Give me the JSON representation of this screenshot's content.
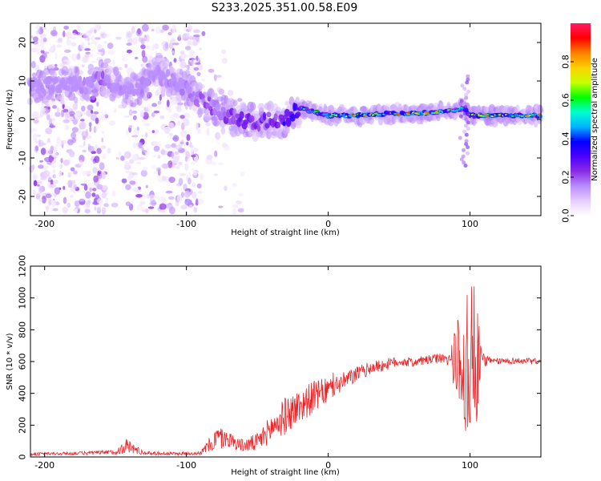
{
  "title": "S233.2025.351.00.58.E09",
  "colors": {
    "snr_line": "#e8262a",
    "axis": "#000000",
    "colormap": [
      "#ffffff",
      "#e6ccff",
      "#b88cff",
      "#8a2be2",
      "#4b00ff",
      "#0000ff",
      "#00b4ff",
      "#00ffd0",
      "#00ff00",
      "#c8ff00",
      "#ffd000",
      "#ff8000",
      "#ff0000",
      "#ff1a66"
    ]
  },
  "chart_data": [
    {
      "type": "heatmap",
      "title": "",
      "xlabel": "Height of straight line (km)",
      "ylabel": "Frequency (Hz)",
      "xlim": [
        -210,
        150
      ],
      "ylim": [
        -25,
        25
      ],
      "x_ticks": [
        -200,
        -100,
        0,
        100
      ],
      "y_ticks": [
        -20,
        -10,
        0,
        10,
        20
      ],
      "colorbar": {
        "label": "Normalized spectral amplitude",
        "range": [
          0,
          1
        ],
        "ticks": [
          "0.0",
          "0.2",
          "0.4",
          "0.6",
          "0.8"
        ],
        "tick_values": [
          0,
          0.2,
          0.4,
          0.6,
          0.8
        ]
      },
      "ridge": {
        "x": [
          -210,
          -190,
          -170,
          -160,
          -150,
          -140,
          -120,
          -100,
          -90,
          -80,
          -70,
          -60,
          -50,
          -40,
          -30,
          -20,
          -10,
          0,
          20,
          40,
          60,
          80,
          90,
          95,
          100,
          110,
          130,
          150
        ],
        "freq": [
          8,
          9,
          9,
          11,
          9,
          7,
          12,
          8,
          5,
          3,
          1,
          0,
          -1,
          0,
          0,
          3,
          2,
          1,
          1,
          1.5,
          1.5,
          2,
          2.5,
          3,
          1,
          1,
          1,
          1
        ],
        "amplitude": [
          0.25,
          0.25,
          0.3,
          0.35,
          0.3,
          0.25,
          0.3,
          0.3,
          0.35,
          0.4,
          0.45,
          0.5,
          0.45,
          0.5,
          0.6,
          0.6,
          0.65,
          0.7,
          0.8,
          0.75,
          0.85,
          0.8,
          0.45,
          0.5,
          0.75,
          0.8,
          0.75,
          0.85
        ]
      }
    },
    {
      "type": "line",
      "title": "",
      "xlabel": "Height of straight line (km)",
      "ylabel": "SNR (10 * v/v)",
      "xlim": [
        -210,
        150
      ],
      "ylim": [
        0,
        1200
      ],
      "x_ticks": [
        -200,
        -100,
        0,
        100
      ],
      "y_ticks": [
        0,
        200,
        400,
        600,
        800,
        1000,
        1200
      ],
      "series": [
        {
          "name": "SNR",
          "x": [
            -210,
            -180,
            -150,
            -142,
            -130,
            -110,
            -90,
            -78,
            -70,
            -60,
            -50,
            -40,
            -30,
            -20,
            -10,
            0,
            10,
            20,
            30,
            40,
            50,
            60,
            70,
            80,
            85,
            90,
            95,
            100,
            105,
            108,
            115,
            130,
            150
          ],
          "y": [
            18,
            22,
            30,
            70,
            25,
            20,
            25,
            120,
            110,
            70,
            90,
            180,
            260,
            320,
            380,
            420,
            470,
            520,
            560,
            580,
            600,
            595,
            610,
            620,
            610,
            600,
            620,
            600,
            610,
            620,
            600,
            605,
            600
          ],
          "noise": [
            10,
            10,
            15,
            50,
            12,
            10,
            12,
            80,
            50,
            40,
            60,
            90,
            120,
            110,
            100,
            80,
            60,
            50,
            40,
            40,
            30,
            30,
            30,
            30,
            40,
            200,
            480,
            420,
            380,
            60,
            20,
            20,
            20
          ]
        }
      ]
    }
  ]
}
